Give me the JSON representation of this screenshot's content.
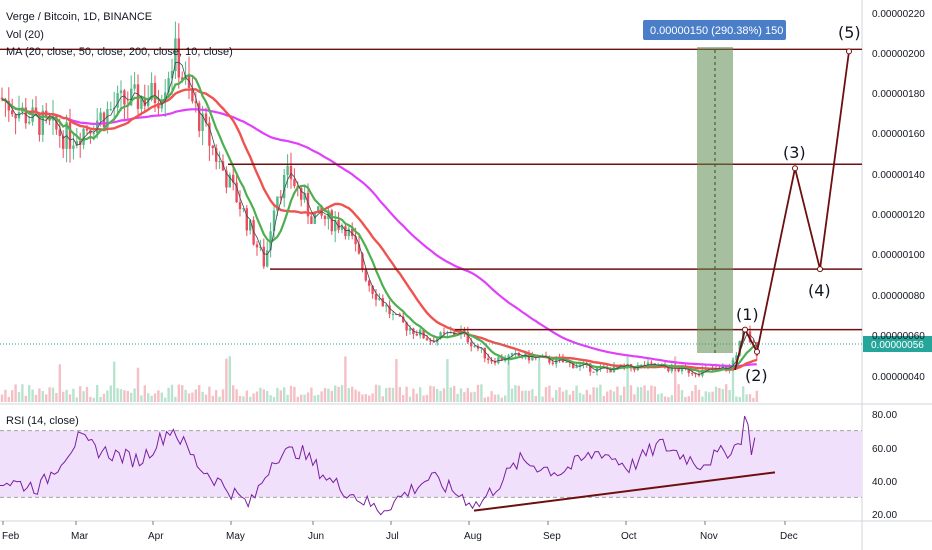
{
  "header": {
    "symbol_line": "Verge / Bitcoin, 1D, BINANCE",
    "vol_line": "Vol (20)",
    "ma_line": "MA (20, close, 50, close, 200, close, 10, close)"
  },
  "rsi": {
    "label": "RSI (14, close)",
    "ticks": [
      "80.00",
      "60.00",
      "40.00",
      "20.00"
    ],
    "upper_band": 70,
    "lower_band": 30
  },
  "price_axis": {
    "ticks": [
      "0.00000220",
      "0.00000200",
      "0.00000180",
      "0.00000160",
      "0.00000140",
      "0.00000120",
      "0.00000100",
      "0.00000080",
      "0.00000060",
      "0.00000040"
    ],
    "current_price": "0.00000056"
  },
  "time_axis": [
    "Feb",
    "Mar",
    "Apr",
    "May",
    "Jun",
    "Jul",
    "Aug",
    "Sep",
    "Oct",
    "Nov",
    "Dec"
  ],
  "measure_label": "0.00000150 (290.38%) 150",
  "wave_labels": [
    "(1)",
    "(2)",
    "(3)",
    "(4)",
    "(5)"
  ],
  "colors": {
    "up": "#53b987",
    "down": "#eb4d5c",
    "ma20": "#4caf50",
    "ma50": "#ef5350",
    "ma200": "#e040fb",
    "ma10": "#434651",
    "resistance": "#6d0f0f",
    "projection": "#6d0f0f",
    "measure_box": "#5d8a4f",
    "measure_label_bg": "#4a7ec9",
    "rsi_line": "#7b1fa2",
    "rsi_band_fill": "#f0e0fb",
    "current_price_bg": "#26a69a"
  },
  "chart_data": [
    {
      "type": "line",
      "title": "Verge / Bitcoin, 1D, BINANCE",
      "x": [
        "Feb",
        "Mar",
        "Apr",
        "May",
        "Jun",
        "Jul",
        "Aug",
        "Sep",
        "Oct",
        "Nov",
        "Dec"
      ],
      "series": [
        {
          "name": "MA (20, close, 50, close, 200, close, 10, close)",
          "values": [
            1.78e-06,
            1.6e-06,
            1.8e-06,
            1.4e-06,
            1.15e-06,
            9.5e-07,
            6.2e-07,
            4.8e-07,
            4.4e-07,
            4.3e-07,
            5.6e-07
          ]
        }
      ],
      "ylim": [
        3e-07,
        2.25e-06
      ],
      "annotations": {
        "horizontal_levels": [
          2.02e-06,
          1.45e-06,
          9.3e-07,
          6.3e-07
        ],
        "wave_points": [
          {
            "label": "(1)",
            "value": 6.3e-07
          },
          {
            "label": "(2)",
            "value": 5.2e-07
          },
          {
            "label": "(3)",
            "value": 1.43e-06
          },
          {
            "label": "(4)",
            "value": 9.3e-07
          },
          {
            "label": "(5)",
            "value": 2.01e-06
          }
        ]
      }
    },
    {
      "type": "line",
      "title": "RSI (14, close)",
      "x": [
        "Feb",
        "Mar",
        "Apr",
        "May",
        "Jun",
        "Jul",
        "Aug",
        "Sep",
        "Oct",
        "Nov",
        "Dec"
      ],
      "series": [
        {
          "name": "RSI (14, close)",
          "values": [
            38,
            62,
            65,
            35,
            58,
            30,
            25,
            48,
            58,
            62,
            68
          ]
        }
      ],
      "ylim": [
        15,
        85
      ]
    }
  ]
}
